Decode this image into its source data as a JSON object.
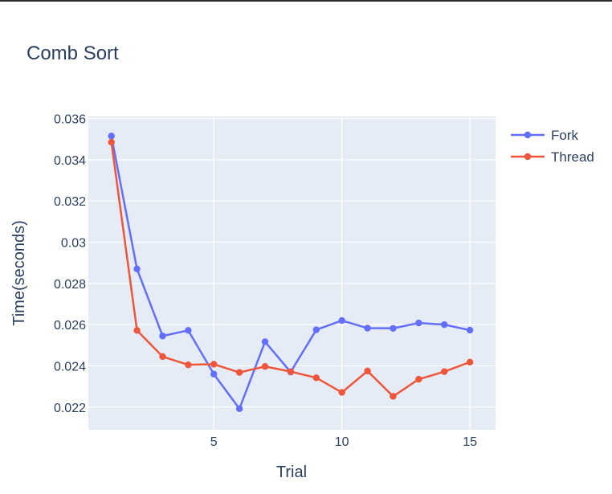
{
  "chart_data": {
    "type": "line",
    "title": "Comb Sort",
    "xlabel": "Trial",
    "ylabel": "Time(seconds)",
    "xlim": [
      0.1,
      16.0
    ],
    "ylim": [
      0.0209,
      0.0361
    ],
    "x_ticks": [
      5,
      10,
      15
    ],
    "x_tick_labels": [
      "5",
      "10",
      "15"
    ],
    "y_ticks": [
      0.022,
      0.024,
      0.026,
      0.028,
      0.03,
      0.032,
      0.034,
      0.036
    ],
    "y_tick_labels": [
      "0.022",
      "0.024",
      "0.026",
      "0.028",
      "0.03",
      "0.032",
      "0.034",
      "0.036"
    ],
    "grid": true,
    "legend_position": "top-right",
    "x": [
      1,
      2,
      3,
      4,
      5,
      6,
      7,
      8,
      9,
      10,
      11,
      12,
      13,
      14,
      15
    ],
    "series": [
      {
        "name": "Fork",
        "color": "#636efa",
        "values": [
          0.03515,
          0.0287,
          0.02545,
          0.02572,
          0.0236,
          0.02192,
          0.02517,
          0.0237,
          0.02575,
          0.0262,
          0.02583,
          0.02582,
          0.02608,
          0.026,
          0.02573
        ]
      },
      {
        "name": "Thread",
        "color": "#ef553b",
        "values": [
          0.03485,
          0.02572,
          0.02445,
          0.02405,
          0.02408,
          0.02368,
          0.02397,
          0.02372,
          0.02342,
          0.02271,
          0.02375,
          0.02252,
          0.02335,
          0.02372,
          0.02418
        ]
      }
    ]
  }
}
